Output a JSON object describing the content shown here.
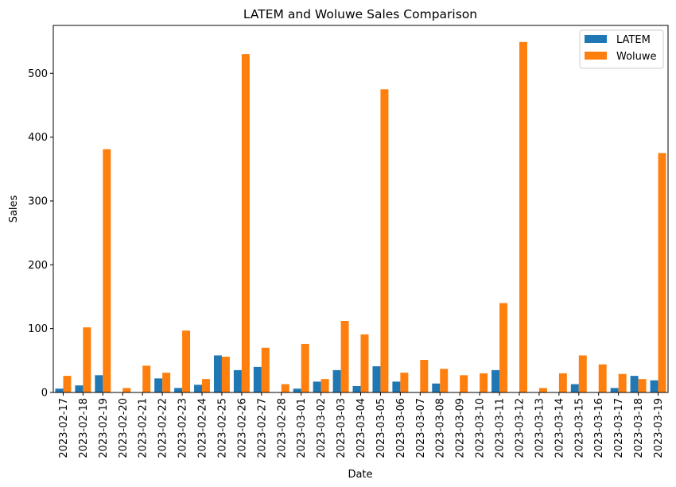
{
  "chart_data": {
    "type": "bar",
    "title": "LATEM and Woluwe Sales Comparison",
    "xlabel": "Date",
    "ylabel": "Sales",
    "ylim": [
      0,
      575
    ],
    "yticks": [
      0,
      100,
      200,
      300,
      400,
      500
    ],
    "grid": false,
    "legend_position": "top-right",
    "categories": [
      "2023-02-17",
      "2023-02-18",
      "2023-02-19",
      "2023-02-20",
      "2023-02-21",
      "2023-02-22",
      "2023-02-23",
      "2023-02-24",
      "2023-02-25",
      "2023-02-26",
      "2023-02-27",
      "2023-02-28",
      "2023-03-01",
      "2023-03-02",
      "2023-03-03",
      "2023-03-04",
      "2023-03-05",
      "2023-03-06",
      "2023-03-07",
      "2023-03-08",
      "2023-03-09",
      "2023-03-10",
      "2023-03-11",
      "2023-03-12",
      "2023-03-13",
      "2023-03-14",
      "2023-03-15",
      "2023-03-16",
      "2023-03-17",
      "2023-03-18",
      "2023-03-19"
    ],
    "series": [
      {
        "name": "LATEM",
        "color": "#1f77b4",
        "values": [
          6,
          11,
          27,
          0,
          0,
          22,
          7,
          12,
          58,
          35,
          40,
          0,
          6,
          17,
          35,
          10,
          41,
          17,
          0,
          14,
          0,
          0,
          35,
          0,
          0,
          0,
          13,
          0,
          7,
          26,
          19
        ]
      },
      {
        "name": "Woluwe",
        "color": "#ff7f0e",
        "values": [
          26,
          102,
          381,
          7,
          42,
          31,
          97,
          21,
          56,
          530,
          70,
          13,
          76,
          21,
          112,
          91,
          475,
          31,
          51,
          37,
          27,
          30,
          140,
          549,
          7,
          30,
          58,
          44,
          29,
          21,
          375
        ]
      }
    ]
  }
}
